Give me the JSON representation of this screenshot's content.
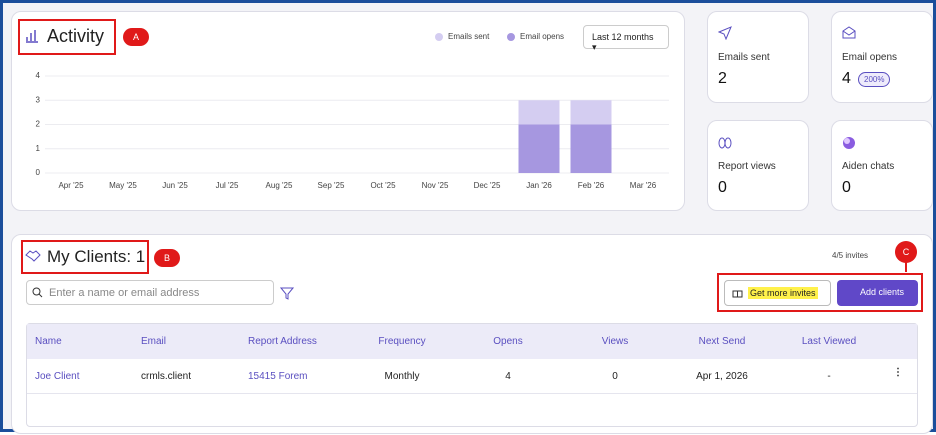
{
  "header": {
    "title": "Activity",
    "annotation": "A"
  },
  "period_select": "Last 12 months",
  "chart_data": {
    "type": "bar",
    "stacked": true,
    "categories": [
      "Apr '25",
      "May '25",
      "Jun '25",
      "Jul '25",
      "Aug '25",
      "Sep '25",
      "Oct '25",
      "Nov '25",
      "Dec '25",
      "Jan '26",
      "Feb '26",
      "Mar '26"
    ],
    "series": [
      {
        "name": "Emails sent",
        "color": "#d4cdf1",
        "values": [
          0,
          0,
          0,
          0,
          0,
          0,
          0,
          0,
          0,
          1,
          1,
          0
        ]
      },
      {
        "name": "Email opens",
        "color": "#a697e0",
        "values": [
          0,
          0,
          0,
          0,
          0,
          0,
          0,
          0,
          0,
          2,
          2,
          0
        ]
      }
    ],
    "ylim": [
      0,
      4
    ],
    "yticks": [
      0,
      1,
      2,
      3,
      4
    ],
    "grid": true
  },
  "stats": [
    {
      "label": "Emails sent",
      "value": 2
    },
    {
      "label": "Email opens",
      "value": 4,
      "badge": "200%"
    },
    {
      "label": "Report views",
      "value": 0
    },
    {
      "label": "Aiden chats",
      "value": 0
    }
  ],
  "clients": {
    "title": "My Clients: 1",
    "annotation": "B",
    "invites": "4/5 invites",
    "search_placeholder": "Enter a name or email address",
    "buttons": [
      "Get more invites",
      "Add clients"
    ],
    "annotation_c": "C",
    "table": {
      "columns": [
        "Name",
        "Email",
        "Report Address",
        "Frequency",
        "Opens",
        "Views",
        "Next Send",
        "Last Viewed"
      ],
      "rows": [
        [
          "Joe Client",
          "crmls.client",
          "15415 Forem",
          "Monthly",
          4,
          0,
          "Apr 1, 2026",
          "-"
        ]
      ]
    }
  }
}
